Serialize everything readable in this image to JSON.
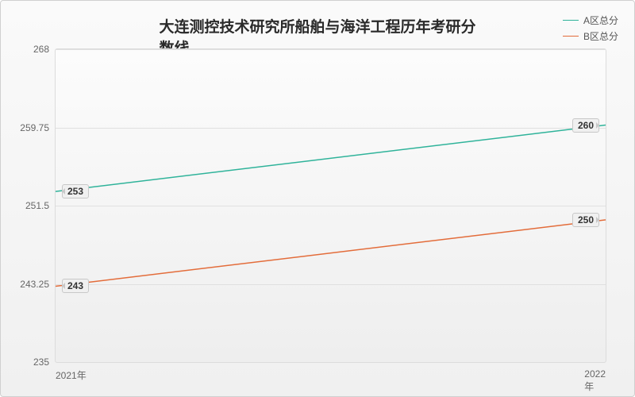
{
  "chart": {
    "type": "line",
    "title": "大连测控技术研究所船舶与海洋工程历年考研分数线",
    "title_fontsize": 19,
    "title_color": "#2a2a2a",
    "background_gradient": [
      "#fafafa",
      "#f0f0f0"
    ],
    "plot_background_gradient": [
      "#fcfcfc",
      "#eeeeee"
    ],
    "border_color": "#d0d0d0",
    "grid_color": "#e0e0e0",
    "legend": {
      "position": "top-right",
      "fontsize": 12,
      "text_color": "#555555",
      "items": [
        {
          "label": "A区总分",
          "color": "#2fb39a"
        },
        {
          "label": "B区总分",
          "color": "#e36c3a"
        }
      ]
    },
    "x_axis": {
      "categories": [
        "2021年",
        "2022年"
      ],
      "label_fontsize": 12,
      "label_color": "#666666"
    },
    "y_axis": {
      "min": 235,
      "max": 268,
      "ticks": [
        235,
        243.25,
        251.5,
        259.75,
        268
      ],
      "tick_labels": [
        "235",
        "243.25",
        "251.5",
        "259.75",
        "268"
      ],
      "label_fontsize": 12,
      "label_color": "#666666"
    },
    "series": [
      {
        "name": "A区总分",
        "color": "#2fb39a",
        "line_width": 1.5,
        "data": [
          253,
          260
        ],
        "point_labels": [
          "253",
          "260"
        ]
      },
      {
        "name": "B区总分",
        "color": "#e36c3a",
        "line_width": 1.5,
        "data": [
          243,
          250
        ],
        "point_labels": [
          "243",
          "250"
        ]
      }
    ],
    "label_bg": "#f0f0f0",
    "label_border": "#c8c8c8",
    "label_fontsize": 12
  }
}
